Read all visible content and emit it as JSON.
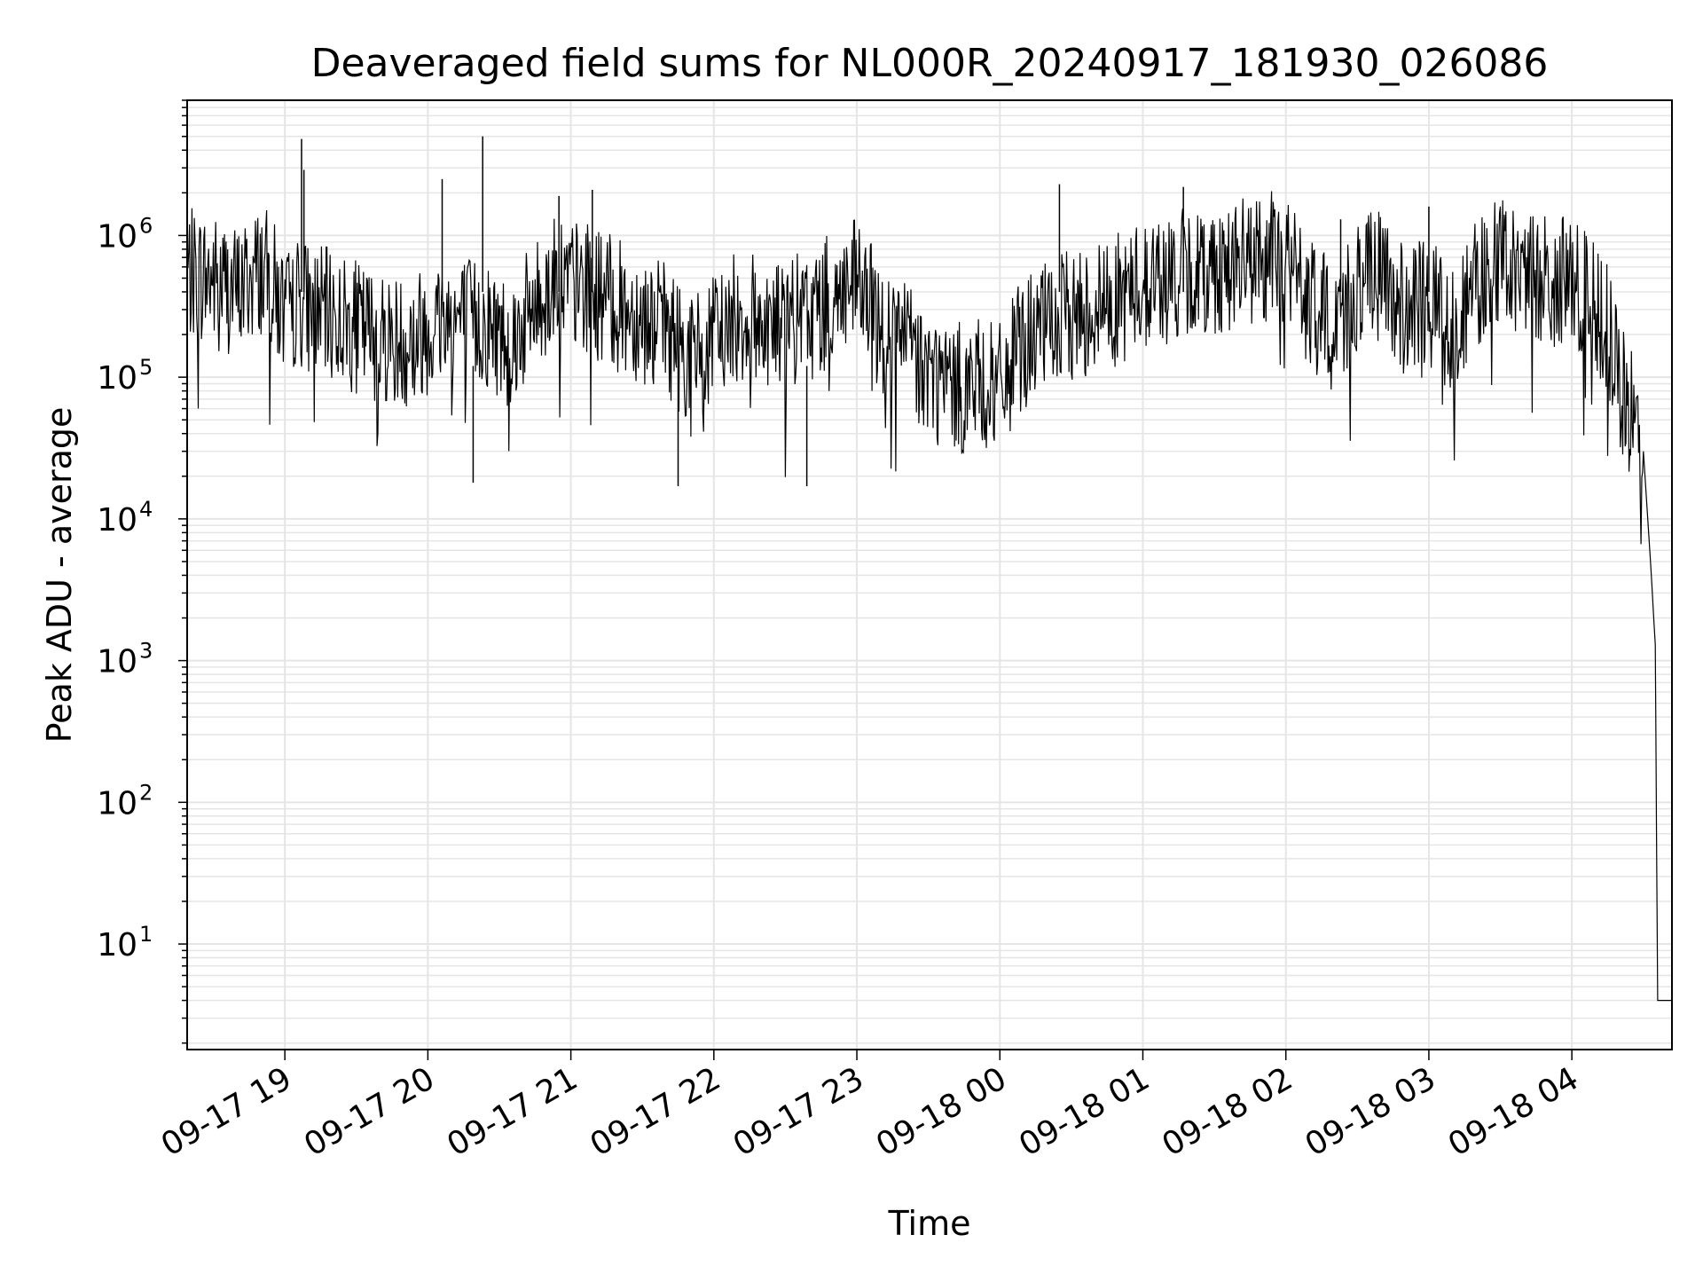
{
  "chart_data": {
    "type": "line",
    "title": "Deaveraged field sums for NL000R_20240917_181930_026086",
    "xlabel": "Time",
    "ylabel": "Peak ADU - average",
    "x_scale": "time",
    "y_scale": "log",
    "xlim": [
      "2024-09-17 18:19",
      "2024-09-18 04:42"
    ],
    "ylim": [
      1.8,
      9000000
    ],
    "grid": true,
    "legend": "none",
    "line_color": "#000000",
    "grid_color": "#e5e5e5",
    "x_ticks": [
      {
        "value": "2024-09-17 19:00",
        "label": "09-17 19"
      },
      {
        "value": "2024-09-17 20:00",
        "label": "09-17 20"
      },
      {
        "value": "2024-09-17 21:00",
        "label": "09-17 21"
      },
      {
        "value": "2024-09-17 22:00",
        "label": "09-17 22"
      },
      {
        "value": "2024-09-17 23:00",
        "label": "09-17 23"
      },
      {
        "value": "2024-09-18 00:00",
        "label": "09-18 00"
      },
      {
        "value": "2024-09-18 01:00",
        "label": "09-18 01"
      },
      {
        "value": "2024-09-18 02:00",
        "label": "09-18 02"
      },
      {
        "value": "2024-09-18 03:00",
        "label": "09-18 03"
      },
      {
        "value": "2024-09-18 04:00",
        "label": "09-18 04"
      }
    ],
    "y_ticks": [
      {
        "value": 10,
        "base": "10",
        "exp": "1"
      },
      {
        "value": 100,
        "base": "10",
        "exp": "2"
      },
      {
        "value": 1000,
        "base": "10",
        "exp": "3"
      },
      {
        "value": 10000,
        "base": "10",
        "exp": "4"
      },
      {
        "value": 100000,
        "base": "10",
        "exp": "5"
      },
      {
        "value": 1000000,
        "base": "10",
        "exp": "6"
      }
    ],
    "series": [
      {
        "x": [
          "2024-09-17 18:19",
          "2024-09-17 18:30",
          "2024-09-17 18:40",
          "2024-09-17 18:50",
          "2024-09-17 18:55",
          "2024-09-17 19:00",
          "2024-09-17 19:06",
          "2024-09-17 19:10",
          "2024-09-17 19:20",
          "2024-09-17 19:30",
          "2024-09-17 19:40",
          "2024-09-17 19:50",
          "2024-09-17 20:00",
          "2024-09-17 20:07",
          "2024-09-17 20:15",
          "2024-09-17 20:25",
          "2024-09-17 20:35",
          "2024-09-17 20:45",
          "2024-09-17 20:55",
          "2024-09-17 21:00",
          "2024-09-17 21:10",
          "2024-09-17 21:20",
          "2024-09-17 21:30",
          "2024-09-17 21:40",
          "2024-09-17 21:50",
          "2024-09-17 22:00",
          "2024-09-17 22:10",
          "2024-09-17 22:20",
          "2024-09-17 22:30",
          "2024-09-17 22:40",
          "2024-09-17 22:50",
          "2024-09-17 23:00",
          "2024-09-17 23:10",
          "2024-09-17 23:20",
          "2024-09-17 23:30",
          "2024-09-17 23:40",
          "2024-09-17 23:50",
          "2024-09-18 00:00",
          "2024-09-18 00:10",
          "2024-09-18 00:20",
          "2024-09-18 00:30",
          "2024-09-18 00:40",
          "2024-09-18 00:50",
          "2024-09-18 01:00",
          "2024-09-18 01:10",
          "2024-09-18 01:20",
          "2024-09-18 01:30",
          "2024-09-18 01:40",
          "2024-09-18 01:50",
          "2024-09-18 02:00",
          "2024-09-18 02:10",
          "2024-09-18 02:20",
          "2024-09-18 02:30",
          "2024-09-18 02:40",
          "2024-09-18 02:50",
          "2024-09-18 03:00",
          "2024-09-18 03:10",
          "2024-09-18 03:20",
          "2024-09-18 03:30",
          "2024-09-18 03:40",
          "2024-09-18 03:50",
          "2024-09-18 04:00",
          "2024-09-18 04:10",
          "2024-09-18 04:15",
          "2024-09-18 04:20",
          "2024-09-18 04:25",
          "2024-09-18 04:30",
          "2024-09-18 04:33",
          "2024-09-18 04:35",
          "2024-09-18 04:36",
          "2024-09-18 04:42"
        ],
        "y": [
          600000,
          550000,
          450000,
          650000,
          500000,
          300000,
          400000,
          350000,
          300000,
          250000,
          220000,
          200000,
          250000,
          300000,
          280000,
          260000,
          200000,
          350000,
          600000,
          500000,
          450000,
          350000,
          300000,
          250000,
          150000,
          200000,
          300000,
          280000,
          260000,
          300000,
          400000,
          500000,
          250000,
          200000,
          120000,
          90000,
          100000,
          90000,
          200000,
          250000,
          300000,
          350000,
          400000,
          500000,
          550000,
          600000,
          650000,
          700000,
          750000,
          800000,
          350000,
          250000,
          500000,
          600000,
          300000,
          400000,
          250000,
          500000,
          700000,
          600000,
          550000,
          500000,
          350000,
          250000,
          90000,
          60000,
          30000,
          5000,
          1300,
          4,
          4
        ],
        "spikes": [
          {
            "x": "2024-09-17 19:07",
            "y": 4800000
          },
          {
            "x": "2024-09-17 19:08",
            "y": 2900000
          },
          {
            "x": "2024-09-17 20:06",
            "y": 2500000
          },
          {
            "x": "2024-09-17 20:23",
            "y": 5000000
          },
          {
            "x": "2024-09-17 20:55",
            "y": 1900000
          },
          {
            "x": "2024-09-17 21:09",
            "y": 2100000
          },
          {
            "x": "2024-09-18 00:25",
            "y": 2300000
          },
          {
            "x": "2024-09-18 01:17",
            "y": 2200000
          },
          {
            "x": "2024-09-18 02:23",
            "y": 1300000
          },
          {
            "x": "2024-09-18 03:00",
            "y": 1600000
          },
          {
            "x": "2024-09-17 20:19",
            "y": 18000
          },
          {
            "x": "2024-09-17 22:39",
            "y": 17000
          },
          {
            "x": "2024-09-17 21:45",
            "y": 17000
          }
        ]
      }
    ]
  }
}
